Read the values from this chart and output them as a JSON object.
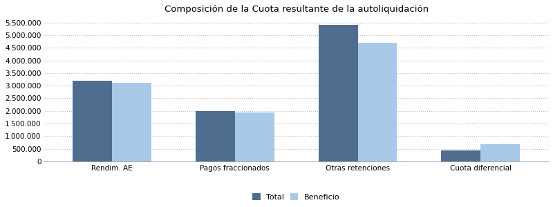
{
  "title": "Composición de la Cuota resultante de la autoliquidación",
  "categories": [
    "Rendim. AE",
    "Pagos fraccionados",
    "Otras retenciones",
    "Cuota diferencial"
  ],
  "total_values": [
    3200000,
    2000000,
    5400000,
    450000
  ],
  "beneficio_values": [
    3100000,
    1950000,
    4700000,
    680000
  ],
  "bar_color_total": "#4f6d8f",
  "bar_color_beneficio": "#a8c8e8",
  "background_color": "#ffffff",
  "plot_bg_color": "#ffffff",
  "grid_color": "#bbbbbb",
  "legend_labels": [
    "Total",
    "Beneficio"
  ],
  "ylim": [
    0,
    5700000
  ],
  "yticks": [
    0,
    500000,
    1000000,
    1500000,
    2000000,
    2500000,
    3000000,
    3500000,
    4000000,
    4500000,
    5000000,
    5500000
  ],
  "title_fontsize": 9.5,
  "tick_fontsize": 7.5,
  "legend_fontsize": 8,
  "bar_width": 0.32
}
